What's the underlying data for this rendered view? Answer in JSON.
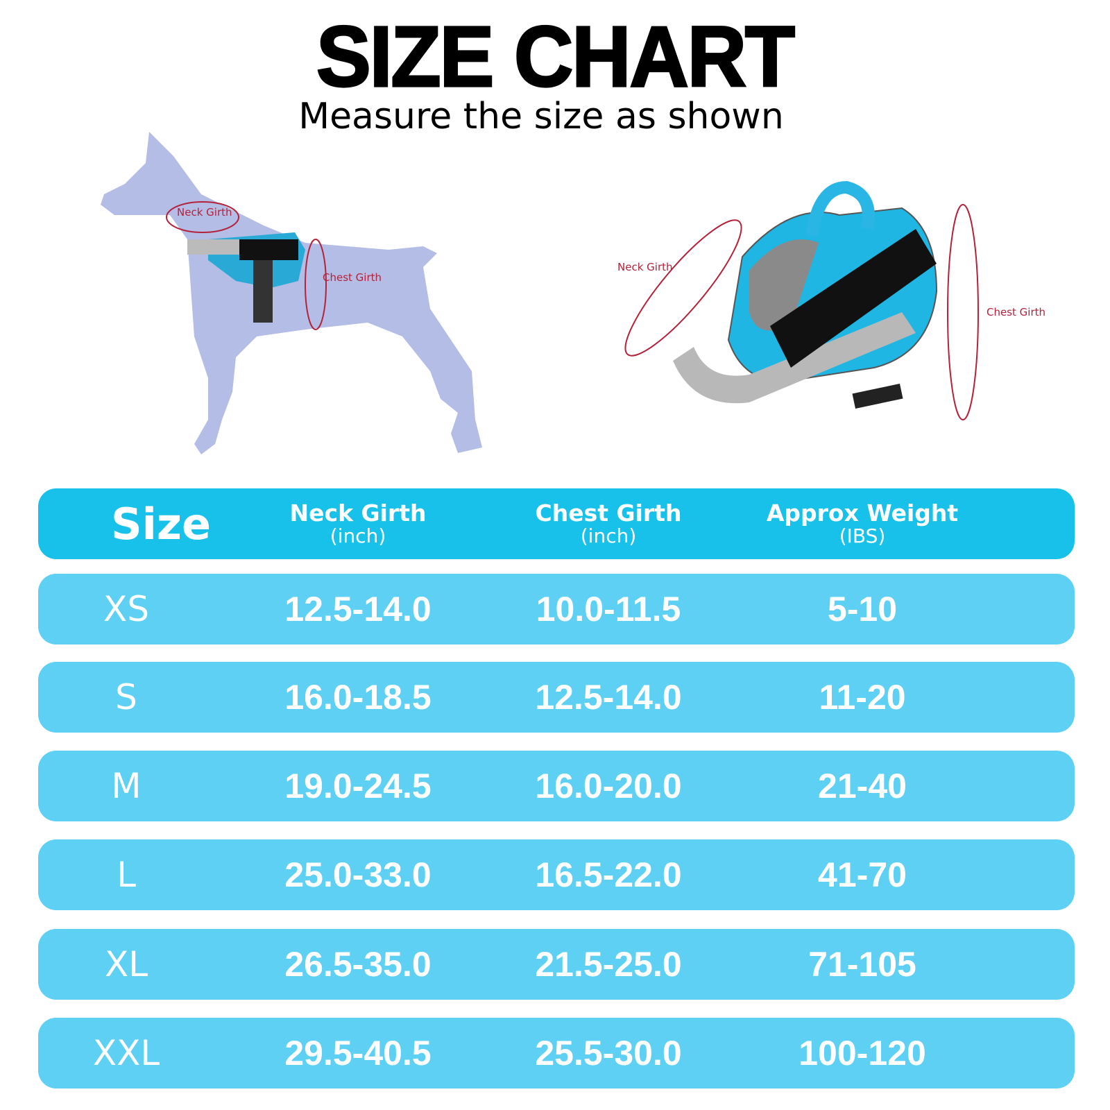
{
  "title": "SIZE CHART",
  "subtitle": "Measure the size as shown",
  "illustrations": {
    "dog_labels": {
      "neck": "Neck Girth",
      "chest": "Chest Girth"
    },
    "harness_labels": {
      "neck": "Neck Girth",
      "chest": "Chest Girth"
    }
  },
  "colors": {
    "header": "#17c1ea",
    "row": "#5dd0f3",
    "annotation": "#b3223a",
    "dog": "#b3bde6"
  },
  "table": {
    "headers": [
      {
        "main": "Size",
        "unit": ""
      },
      {
        "main": "Neck Girth",
        "unit": "(inch)"
      },
      {
        "main": "Chest Girth",
        "unit": "(inch)"
      },
      {
        "main": "Approx Weight",
        "unit": "(IBS)"
      }
    ],
    "rows": [
      {
        "size": "XS",
        "neck": "12.5-14.0",
        "chest": "10.0-11.5",
        "weight": "5-10"
      },
      {
        "size": "S",
        "neck": "16.0-18.5",
        "chest": "12.5-14.0",
        "weight": "11-20"
      },
      {
        "size": "M",
        "neck": "19.0-24.5",
        "chest": "16.0-20.0",
        "weight": "21-40"
      },
      {
        "size": "L",
        "neck": "25.0-33.0",
        "chest": "16.5-22.0",
        "weight": "41-70"
      },
      {
        "size": "XL",
        "neck": "26.5-35.0",
        "chest": "21.5-25.0",
        "weight": "71-105"
      },
      {
        "size": "XXL",
        "neck": "29.5-40.5",
        "chest": "25.5-30.0",
        "weight": "100-120"
      }
    ]
  }
}
